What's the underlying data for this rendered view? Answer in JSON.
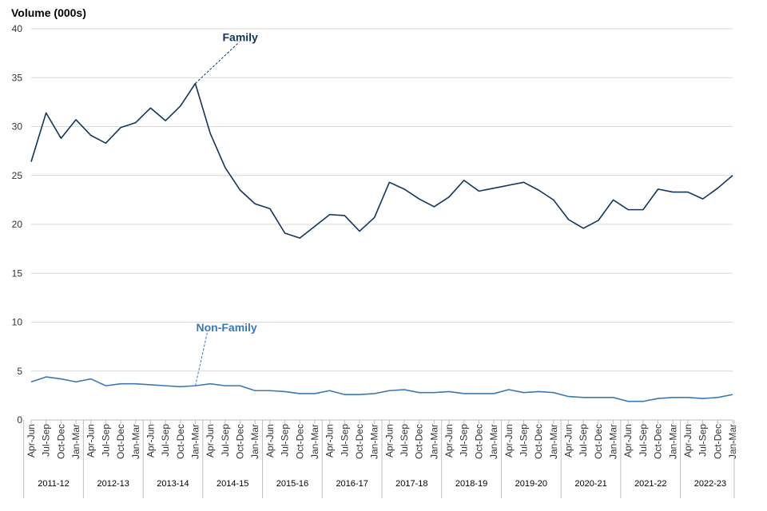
{
  "chart_data": {
    "type": "line",
    "ylabel": "Volume (000s)",
    "ylim": [
      0,
      40
    ],
    "yticks": [
      0,
      5,
      10,
      15,
      20,
      25,
      30,
      35,
      40
    ],
    "grid": true,
    "quarters": [
      "Apr-Jun",
      "Jul-Sep",
      "Oct-Dec",
      "Jan-Mar",
      "Apr-Jun",
      "Jul-Sep",
      "Oct-Dec",
      "Jan-Mar",
      "Apr-Jun",
      "Jul-Sep",
      "Oct-Dec",
      "Jan-Mar",
      "Apr-Jun",
      "Jul-Sep",
      "Oct-Dec",
      "Jan-Mar",
      "Apr-Jun",
      "Jul-Sep",
      "Oct-Dec",
      "Jan-Mar",
      "Apr-Jun",
      "Jul-Sep",
      "Oct-Dec",
      "Jan-Mar",
      "Apr-Jun",
      "Jul-Sep",
      "Oct-Dec",
      "Jan-Mar",
      "Apr-Jun",
      "Jul-Sep",
      "Oct-Dec",
      "Jan-Mar",
      "Apr-Jun",
      "Jul-Sep",
      "Oct-Dec",
      "Jan-Mar",
      "Apr-Jun",
      "Jul-Sep",
      "Oct-Dec",
      "Jan-Mar",
      "Apr-Jun",
      "Jul-Sep",
      "Oct-Dec",
      "Jan-Mar",
      "Apr-Jun",
      "Jul-Sep",
      "Oct-Dec",
      "Jan-Mar"
    ],
    "years": [
      "2011-12",
      "2012-13",
      "2013-14",
      "2014-15",
      "2015-16",
      "2016-17",
      "2017-18",
      "2018-19",
      "2019-20",
      "2020-21",
      "2021-22",
      "2022-23"
    ],
    "series": [
      {
        "name": "Family",
        "color": "#12355b",
        "values": [
          26.4,
          31.4,
          28.8,
          30.7,
          29.1,
          28.3,
          29.9,
          30.4,
          31.9,
          30.6,
          32.1,
          34.4,
          29.3,
          25.8,
          23.5,
          22.1,
          21.6,
          19.1,
          18.6,
          19.8,
          21.0,
          20.9,
          19.3,
          20.7,
          24.3,
          23.6,
          22.6,
          21.8,
          22.8,
          24.5,
          23.4,
          23.7,
          24.0,
          24.3,
          23.5,
          22.5,
          20.5,
          19.6,
          20.4,
          22.5,
          21.5,
          21.5,
          23.6,
          23.3,
          23.3,
          22.6,
          23.7,
          25.0
        ]
      },
      {
        "name": "Non-Family",
        "color": "#3c78b5",
        "values": [
          3.9,
          4.4,
          4.2,
          3.9,
          4.2,
          3.5,
          3.7,
          3.7,
          3.6,
          3.5,
          3.4,
          3.5,
          3.7,
          3.5,
          3.5,
          3.0,
          3.0,
          2.9,
          2.7,
          2.7,
          3.0,
          2.6,
          2.6,
          2.7,
          3.0,
          3.1,
          2.8,
          2.8,
          2.9,
          2.7,
          2.7,
          2.7,
          3.1,
          2.8,
          2.9,
          2.8,
          2.4,
          2.3,
          2.3,
          2.3,
          1.9,
          1.9,
          2.2,
          2.3,
          2.3,
          2.2,
          2.3,
          2.6
        ]
      }
    ],
    "annotations": [
      {
        "text": "Family",
        "series": 0,
        "point_index": 11
      },
      {
        "text": "Non-Family",
        "series": 1,
        "point_index": 11
      }
    ]
  }
}
